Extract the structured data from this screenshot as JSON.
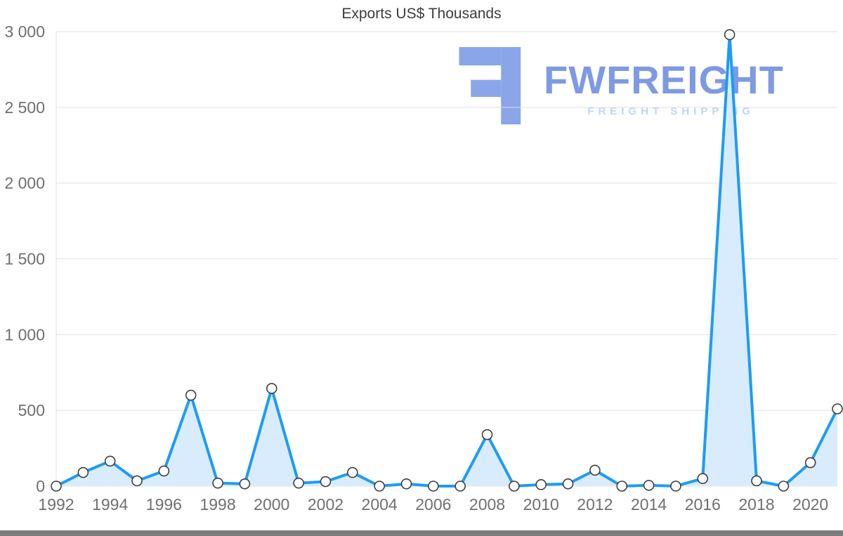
{
  "watermark": {
    "brand": "FWFREIGHT",
    "tagline": "FREIGHT SHIPPING",
    "brand_color": "#7d9ae2",
    "tagline_color": "#bdd6f4",
    "icon_color": "#8ba5e9",
    "icon": "fwfreight-logo-icon"
  },
  "chart_data": {
    "type": "area",
    "title": "Exports US$ Thousands",
    "xlabel": "",
    "ylabel": "",
    "x": [
      1992,
      1993,
      1994,
      1995,
      1996,
      1997,
      1998,
      1999,
      2000,
      2001,
      2002,
      2003,
      2004,
      2005,
      2006,
      2007,
      2008,
      2009,
      2010,
      2011,
      2012,
      2013,
      2014,
      2015,
      2016,
      2017,
      2018,
      2019,
      2020,
      2021
    ],
    "series": [
      {
        "name": "Exports US$ Thousands",
        "values": [
          0,
          90,
          165,
          35,
          100,
          600,
          20,
          15,
          645,
          20,
          30,
          90,
          0,
          15,
          0,
          0,
          340,
          0,
          10,
          15,
          105,
          0,
          5,
          0,
          50,
          2980,
          35,
          0,
          155,
          510
        ]
      }
    ],
    "ylim": [
      0,
      3000
    ],
    "yticks": [
      {
        "value": 0,
        "label": "0"
      },
      {
        "value": 500,
        "label": "500"
      },
      {
        "value": 1000,
        "label": "1 000"
      },
      {
        "value": 1500,
        "label": "1 500"
      },
      {
        "value": 2000,
        "label": "2 000"
      },
      {
        "value": 2500,
        "label": "2 500"
      },
      {
        "value": 3000,
        "label": "3 000"
      }
    ],
    "xticks": [
      {
        "index": 0,
        "label": "1992"
      },
      {
        "index": 2,
        "label": "1994"
      },
      {
        "index": 4,
        "label": "1996"
      },
      {
        "index": 6,
        "label": "1998"
      },
      {
        "index": 8,
        "label": "2000"
      },
      {
        "index": 10,
        "label": "2002"
      },
      {
        "index": 12,
        "label": "2004"
      },
      {
        "index": 14,
        "label": "2006"
      },
      {
        "index": 16,
        "label": "2008"
      },
      {
        "index": 18,
        "label": "2010"
      },
      {
        "index": 20,
        "label": "2012"
      },
      {
        "index": 22,
        "label": "2014"
      },
      {
        "index": 24,
        "label": "2016"
      },
      {
        "index": 26,
        "label": "2018"
      },
      {
        "index": 28,
        "label": "2020"
      }
    ],
    "grid": true,
    "legend": "none",
    "line_color": "#1c9cf4",
    "fill_color": "#d9ecfe",
    "marker_fill": "#ffffff",
    "marker_stroke": "#3f3f3f",
    "gridline_color": "#e0e0e0",
    "axis_label_color": "#6f6f6f"
  }
}
